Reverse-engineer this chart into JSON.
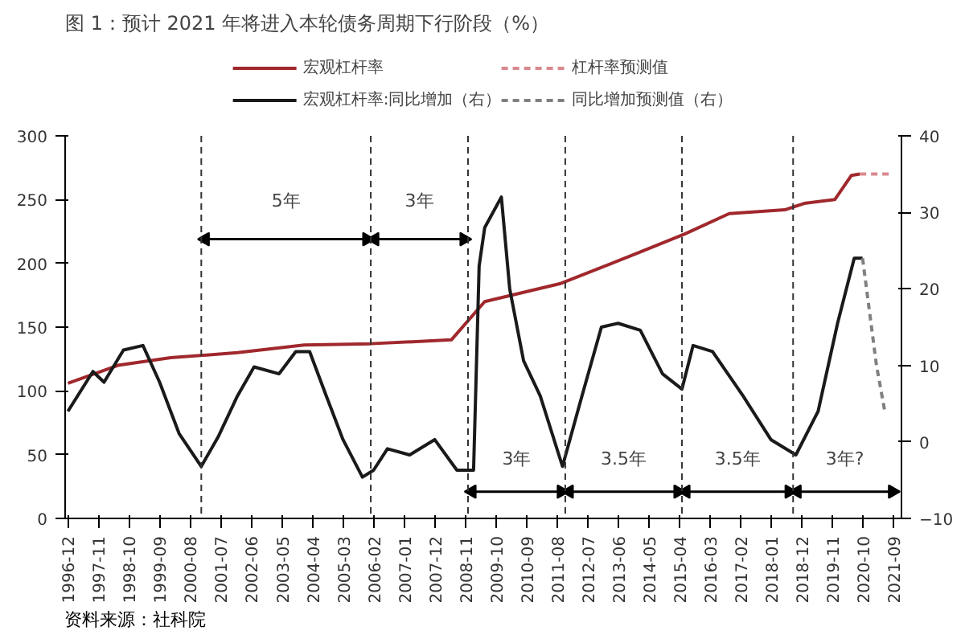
{
  "chart_data": {
    "type": "line",
    "title": "图 1：预计 2021 年将进入本轮债务周期下行阶段（%）",
    "xlim": [
      "1996-11",
      "2021-12"
    ],
    "xticks": [
      "1996-12",
      "1997-11",
      "1998-10",
      "1999-09",
      "2000-08",
      "2001-07",
      "2002-06",
      "2003-05",
      "2004-04",
      "2005-03",
      "2006-02",
      "2007-01",
      "2007-12",
      "2008-11",
      "2009-10",
      "2010-09",
      "2011-08",
      "2012-07",
      "2013-06",
      "2014-05",
      "2015-04",
      "2016-03",
      "2017-02",
      "2018-01",
      "2018-12",
      "2019-11",
      "2020-10",
      "2021-09"
    ],
    "ylim": [
      0,
      300
    ],
    "yticks": [
      0,
      50,
      100,
      150,
      200,
      250,
      300
    ],
    "y2lim": [
      -10,
      40
    ],
    "y2ticks": [
      -10,
      0,
      10,
      20,
      30,
      40
    ],
    "grid": false,
    "legend": "top",
    "marker": "none",
    "series": [
      {
        "name": "宏观杠杆率",
        "color": "#a0282d",
        "line_style": "solid",
        "x": [
          "1996-12",
          "1998-06",
          "2000-01",
          "2002-01",
          "2004-01",
          "2006-01",
          "2008-06",
          "2009-06",
          "2011-09",
          "2014-01",
          "2015-06",
          "2016-10",
          "2018-06",
          "2019-01",
          "2019-12",
          "2020-06",
          "2020-09"
        ],
        "values": [
          106,
          120,
          126,
          130,
          136,
          137,
          140,
          170,
          184,
          208,
          223,
          239,
          242,
          247,
          250,
          269,
          270
        ]
      },
      {
        "name": "宏观杠杆率:同比增加（右）",
        "color": "#1a1a1a",
        "line_style": "solid",
        "axis": "y2",
        "x": [
          "1996-12",
          "1997-09",
          "1998-01",
          "1998-08",
          "1999-03",
          "1999-09",
          "2000-04",
          "2000-12",
          "2001-06",
          "2002-01",
          "2002-07",
          "2003-04",
          "2003-10",
          "2004-03",
          "2004-09",
          "2005-03",
          "2005-10",
          "2006-02",
          "2006-07",
          "2007-03",
          "2007-12",
          "2008-08",
          "2009-02",
          "2009-04",
          "2009-06",
          "2009-12",
          "2010-03",
          "2010-08",
          "2011-02",
          "2011-10",
          "2012-05",
          "2012-12",
          "2013-06",
          "2014-02",
          "2014-10",
          "2015-05",
          "2015-09",
          "2016-04",
          "2017-03",
          "2018-01",
          "2018-10",
          "2019-06",
          "2020-01",
          "2020-07",
          "2020-10"
        ],
        "values": [
          4.0,
          9.2,
          7.8,
          12,
          12.6,
          7.8,
          1.1,
          -3.2,
          0.6,
          6,
          9.8,
          8.9,
          11.8,
          11.8,
          6,
          0.3,
          -4.6,
          -3.7,
          -0.9,
          -1.7,
          0.3,
          -3.7,
          -3.7,
          23,
          28,
          32,
          20,
          10.6,
          6,
          -3.2,
          6,
          15,
          15.5,
          14.6,
          8.9,
          6.9,
          12.6,
          11.8,
          6,
          0.3,
          -1.7,
          4,
          15.5,
          24,
          24
        ]
      },
      {
        "name": "杠杆率预测值",
        "color": "#d9898e",
        "line_style": "dashed",
        "x": [
          "2020-09",
          "2021-09"
        ],
        "values": [
          270,
          270
        ]
      },
      {
        "name": "同比增加预测值（右）",
        "color": "#808080",
        "line_style": "dashed",
        "axis": "y2",
        "x": [
          "2020-10",
          "2021-03",
          "2021-06"
        ],
        "values": [
          24,
          10,
          4
        ]
      }
    ],
    "ref_lines": [
      {
        "axis": "x",
        "value": "2000-12",
        "color": "#333333",
        "line_style": "dashed"
      },
      {
        "axis": "x",
        "value": "2006-01",
        "color": "#333333",
        "line_style": "dashed"
      },
      {
        "axis": "x",
        "value": "2008-12",
        "color": "#333333",
        "line_style": "dashed"
      },
      {
        "axis": "x",
        "value": "2011-11",
        "color": "#333333",
        "line_style": "dashed"
      },
      {
        "axis": "x",
        "value": "2015-05",
        "color": "#333333",
        "line_style": "dashed"
      },
      {
        "axis": "x",
        "value": "2018-09",
        "color": "#333333",
        "line_style": "dashed"
      }
    ],
    "annotations": [
      "5年",
      "3年",
      "3年",
      "3.5年",
      "3.5年",
      "3年?",
      "资料来源：社科院"
    ]
  }
}
